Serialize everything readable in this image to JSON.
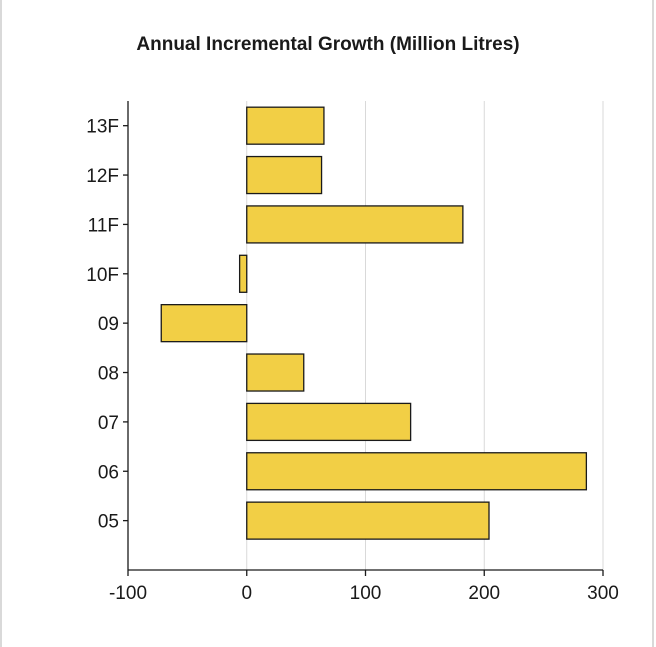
{
  "chart_data": {
    "type": "bar",
    "orientation": "horizontal",
    "title": "Annual Incremental Growth (Million Litres)",
    "xlabel": "",
    "ylabel": "",
    "categories": [
      "05",
      "06",
      "07",
      "08",
      "09",
      "10F",
      "11F",
      "12F",
      "13F"
    ],
    "values": [
      204,
      286,
      138,
      48,
      -72,
      -6,
      182,
      63,
      65
    ],
    "xlim": [
      -100,
      300
    ],
    "xticks": [
      -100,
      0,
      100,
      200,
      300
    ],
    "grid": "vertical",
    "legend": "none",
    "bar_color": "#f2cf45",
    "bar_edge_color": "#1a1a1a",
    "grid_color": "#d9d9d9"
  }
}
